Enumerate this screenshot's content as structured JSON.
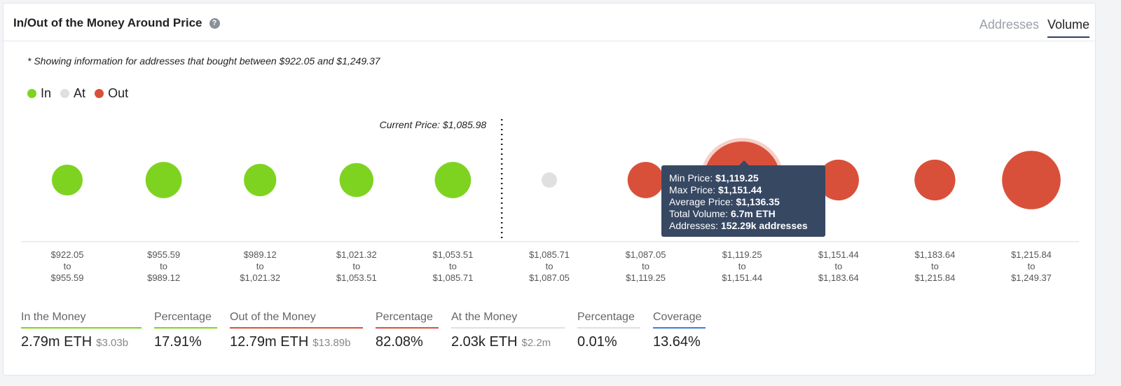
{
  "header": {
    "title": "In/Out of the Money Around Price",
    "help_icon": "question-circle-icon",
    "tabs": [
      {
        "label": "Addresses",
        "active": false
      },
      {
        "label": "Volume",
        "active": true
      }
    ]
  },
  "note": "* Showing information for addresses that bought between $922.05 and $1,249.37",
  "legend": [
    {
      "label": "In",
      "color": "#7ed321"
    },
    {
      "label": "At",
      "color": "#e0e0e0"
    },
    {
      "label": "Out",
      "color": "#d9503a"
    }
  ],
  "current_price_label": "Current Price: $1,085.98",
  "chart_data": {
    "type": "scatter",
    "bins": [
      {
        "from": "$922.05",
        "to_word": "to",
        "to": "$955.59",
        "status": "in",
        "relative_size": 0.4
      },
      {
        "from": "$955.59",
        "to_word": "to",
        "to": "$989.12",
        "status": "in",
        "relative_size": 0.47
      },
      {
        "from": "$989.12",
        "to_word": "to",
        "to": "$1,021.32",
        "status": "in",
        "relative_size": 0.42
      },
      {
        "from": "$1,021.32",
        "to_word": "to",
        "to": "$1,053.51",
        "status": "in",
        "relative_size": 0.44
      },
      {
        "from": "$1,053.51",
        "to_word": "to",
        "to": "$1,085.71",
        "status": "in",
        "relative_size": 0.47
      },
      {
        "from": "$1,085.71",
        "to_word": "to",
        "to": "$1,087.05",
        "status": "at",
        "relative_size": 0.2
      },
      {
        "from": "$1,087.05",
        "to_word": "to",
        "to": "$1,119.25",
        "status": "out",
        "relative_size": 0.47
      },
      {
        "from": "$1,119.25",
        "to_word": "to",
        "to": "$1,151.44",
        "status": "out",
        "relative_size": 1.0,
        "highlighted": true
      },
      {
        "from": "$1,151.44",
        "to_word": "to",
        "to": "$1,183.64",
        "status": "out",
        "relative_size": 0.53
      },
      {
        "from": "$1,183.64",
        "to_word": "to",
        "to": "$1,215.84",
        "status": "out",
        "relative_size": 0.53
      },
      {
        "from": "$1,215.84",
        "to_word": "to",
        "to": "$1,249.37",
        "status": "out",
        "relative_size": 0.76
      }
    ],
    "current_price_position_after_bin": 5
  },
  "tooltip": {
    "min_label": "Min Price:",
    "min": "$1,119.25",
    "max_label": "Max Price:",
    "max": "$1,151.44",
    "avg_label": "Average Price:",
    "avg": "$1,136.35",
    "vol_label": "Total Volume:",
    "vol": "6.7m ETH",
    "addr_label": "Addresses:",
    "addr": "152.29k addresses"
  },
  "stats": [
    {
      "label": "In the Money",
      "value": "2.79m ETH",
      "sub": "$3.03b",
      "color": "#7ed321"
    },
    {
      "label": "Percentage",
      "value": "17.91%",
      "sub": "",
      "color": "#7ed321"
    },
    {
      "label": "Out of the Money",
      "value": "12.79m ETH",
      "sub": "$13.89b",
      "color": "#d9503a"
    },
    {
      "label": "Percentage",
      "value": "82.08%",
      "sub": "",
      "color": "#d9503a"
    },
    {
      "label": "At the Money",
      "value": "2.03k ETH",
      "sub": "$2.2m",
      "color": "#e0e0e0"
    },
    {
      "label": "Percentage",
      "value": "0.01%",
      "sub": "",
      "color": "#e0e0e0"
    },
    {
      "label": "Coverage",
      "value": "13.64%",
      "sub": "",
      "color": "#3b7ddd"
    }
  ]
}
